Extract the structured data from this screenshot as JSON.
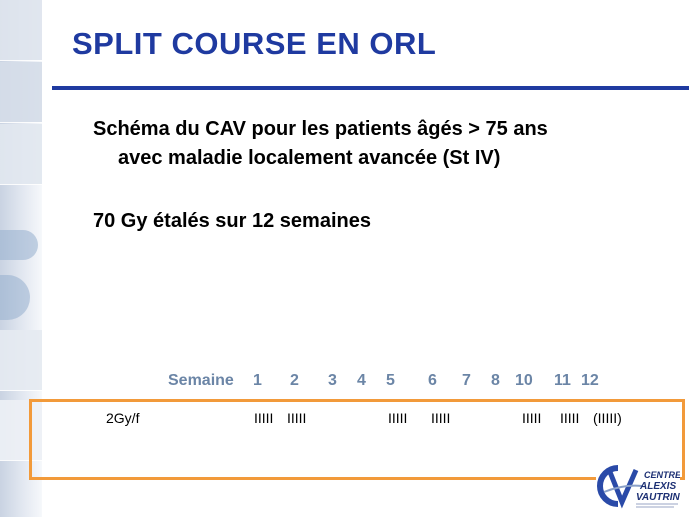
{
  "slide": {
    "title": "SPLIT COURSE EN ORL",
    "bullets": [
      "Schéma du CAV pour les patients âgés > 75 ans",
      "avec maladie localement avancée (St IV)",
      "70 Gy étalés sur 12 semaines"
    ]
  },
  "schedule": {
    "header_label": "Semaine",
    "weeks": [
      "1",
      "2",
      "3",
      "4",
      "5",
      "6",
      "7",
      "8",
      "10",
      "11",
      "12"
    ],
    "row_label": "2Gy/f",
    "doses": [
      "IIIII",
      "IIIII",
      "IIIII",
      "IIIII",
      "IIIII",
      "IIIII",
      "(IIIII)"
    ]
  },
  "logo": {
    "line1": "CENTRE",
    "line2": "ALEXIS",
    "line3": "VAUTRIN"
  },
  "colors": {
    "title": "#1f3aa0",
    "week_header": "#6b85a6",
    "box_border": "#f29a3a"
  }
}
